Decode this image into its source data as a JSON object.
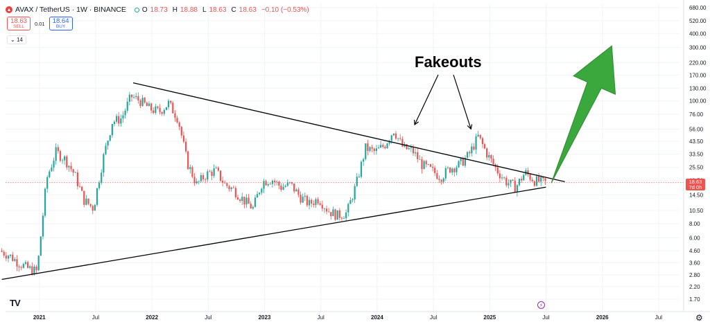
{
  "header": {
    "symbol": "AVAX / TetherUS · 1W · BINANCE",
    "open_label": "O",
    "open": "18.73",
    "high_label": "H",
    "high": "18.88",
    "low_label": "L",
    "low": "18.63",
    "close_label": "C",
    "close": "18.63",
    "change": "−0.10 (−0.53%)"
  },
  "trade": {
    "sell_price": "18.63",
    "sell_label": "SELL",
    "spread": "0.01",
    "buy_price": "18.64",
    "buy_label": "BUY"
  },
  "indicators_label": "14",
  "annotation": "Fakeouts",
  "last_price_tag": {
    "price": "18.63",
    "countdown": "7d 0h"
  },
  "logo_text": "TV",
  "colors": {
    "up": "#26a69a",
    "down": "#ef5350",
    "trendline": "#000000",
    "arrow": "#3aa83c",
    "price_line": "#ef5350",
    "grid": "#f0f3fa"
  },
  "icons": [
    "avax-logo-icon",
    "market-status-icon",
    "flash-icon",
    "gear-icon"
  ],
  "chart_data": {
    "type": "candlestick",
    "title": "",
    "xlabel": "",
    "ylabel": "",
    "y_scale": "log",
    "ylim": [
      1.3,
      680
    ],
    "y_ticks": [
      "680.00",
      "520.00",
      "400.00",
      "300.00",
      "220.00",
      "170.00",
      "130.00",
      "100.00",
      "76.00",
      "56.00",
      "43.50",
      "33.50",
      "25.50",
      "19.50",
      "14.50",
      "10.50",
      "8.00",
      "6.00",
      "4.60",
      "3.60",
      "2.80",
      "2.20",
      "1.70"
    ],
    "x_ticks": [
      "2021",
      "Jul",
      "2022",
      "Jul",
      "2023",
      "Jul",
      "2024",
      "Jul",
      "2025",
      "Jul",
      "2026",
      "Jul"
    ],
    "last_price": 18.63,
    "price_path": [
      [
        "2020-09",
        4.6
      ],
      [
        "2020-10",
        4.2
      ],
      [
        "2020-11",
        3.6
      ],
      [
        "2020-12",
        3.2
      ],
      [
        "2021-01",
        3.0
      ],
      [
        "2021-02",
        20.0
      ],
      [
        "2021-03",
        35.0
      ],
      [
        "2021-04",
        30.0
      ],
      [
        "2021-05",
        22.0
      ],
      [
        "2021-06",
        13.0
      ],
      [
        "2021-07",
        11.0
      ],
      [
        "2021-08",
        30.0
      ],
      [
        "2021-09",
        65.0
      ],
      [
        "2021-10",
        70.0
      ],
      [
        "2021-11",
        110.0
      ],
      [
        "2021-12",
        100.0
      ],
      [
        "2022-01",
        85.0
      ],
      [
        "2022-02",
        80.0
      ],
      [
        "2022-03",
        95.0
      ],
      [
        "2022-04",
        70.0
      ],
      [
        "2022-05",
        28.0
      ],
      [
        "2022-06",
        18.0
      ],
      [
        "2022-07",
        22.0
      ],
      [
        "2022-08",
        24.0
      ],
      [
        "2022-09",
        18.0
      ],
      [
        "2022-10",
        16.0
      ],
      [
        "2022-11",
        13.0
      ],
      [
        "2022-12",
        11.0
      ],
      [
        "2023-01",
        19.0
      ],
      [
        "2023-02",
        20.0
      ],
      [
        "2023-03",
        17.0
      ],
      [
        "2023-04",
        18.0
      ],
      [
        "2023-05",
        14.0
      ],
      [
        "2023-06",
        12.0
      ],
      [
        "2023-07",
        13.5
      ],
      [
        "2023-08",
        10.5
      ],
      [
        "2023-09",
        9.5
      ],
      [
        "2023-10",
        10.0
      ],
      [
        "2023-11",
        18.0
      ],
      [
        "2023-12",
        38.0
      ],
      [
        "2024-01",
        35.0
      ],
      [
        "2024-02",
        40.0
      ],
      [
        "2024-03",
        55.0
      ],
      [
        "2024-04",
        38.0
      ],
      [
        "2024-05",
        36.0
      ],
      [
        "2024-06",
        27.0
      ],
      [
        "2024-07",
        24.0
      ],
      [
        "2024-08",
        21.0
      ],
      [
        "2024-09",
        25.0
      ],
      [
        "2024-10",
        27.0
      ],
      [
        "2024-11",
        33.0
      ],
      [
        "2024-12",
        48.0
      ],
      [
        "2025-01",
        33.0
      ],
      [
        "2025-02",
        24.0
      ],
      [
        "2025-03",
        19.0
      ],
      [
        "2025-04",
        17.0
      ],
      [
        "2025-05",
        23.0
      ],
      [
        "2025-06",
        19.5
      ],
      [
        "2025-07",
        18.63
      ]
    ],
    "resistance_line": {
      "start": [
        "2021-11",
        145.0
      ],
      "end": [
        "2025-09",
        19.0
      ]
    },
    "support_line": {
      "start": [
        "2020-09",
        2.55
      ],
      "end": [
        "2025-07",
        17.0
      ]
    },
    "projection_arrow": {
      "from": [
        "2025-08",
        18.5
      ],
      "to": [
        "2026-02",
        310.0
      ]
    },
    "fakeout_points": [
      [
        "2024-05",
        58.0
      ],
      [
        "2024-11",
        53.0
      ]
    ]
  }
}
